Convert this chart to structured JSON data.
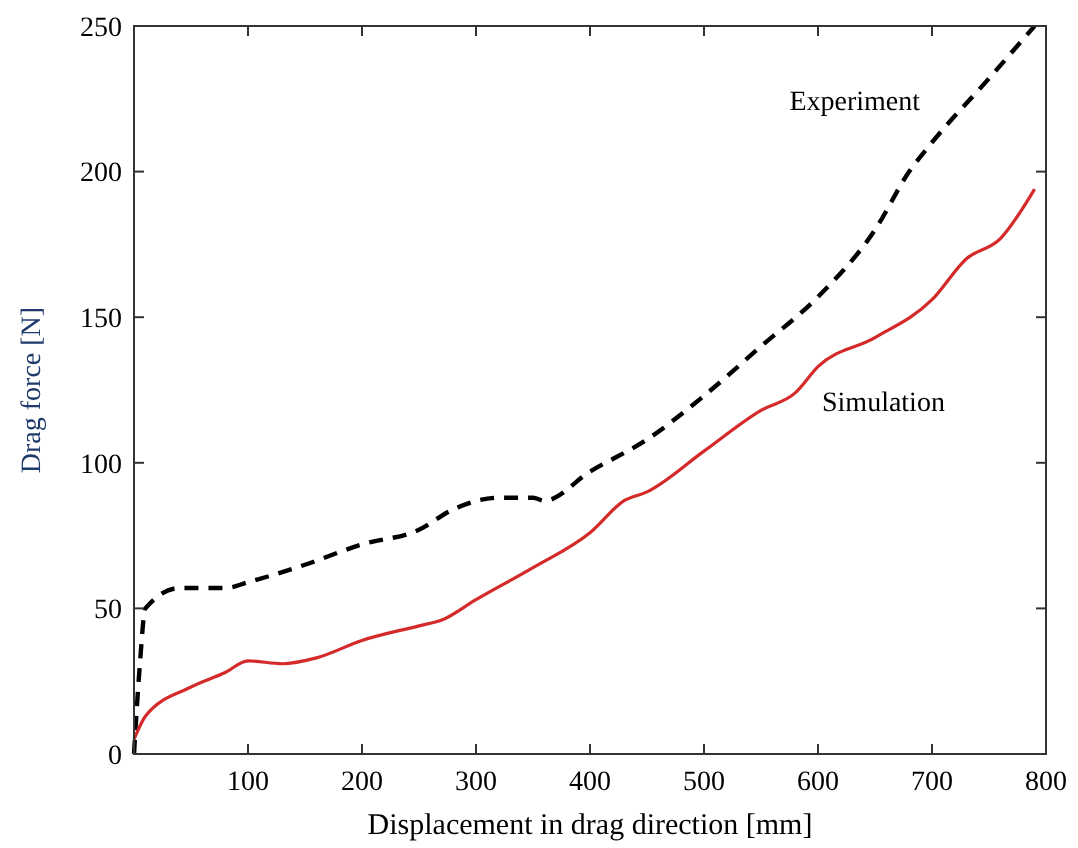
{
  "chart_data": {
    "type": "line",
    "xlabel": "Displacement in drag direction [mm]",
    "ylabel": "Drag force [N]",
    "xlim": [
      0,
      800
    ],
    "ylim": [
      0,
      250
    ],
    "xticks": [
      {
        "value": 0,
        "label": null
      },
      100,
      200,
      300,
      400,
      500,
      600,
      700,
      800
    ],
    "yticks": [
      0,
      50,
      100,
      150,
      200,
      250
    ],
    "grid": false,
    "marker": "none",
    "series": [
      {
        "name": "Experiment",
        "color": "#000000",
        "line_style": "dashed",
        "x": [
          0,
          5,
          10,
          40,
          80,
          100,
          150,
          200,
          250,
          280,
          320,
          350,
          360,
          400,
          450,
          500,
          550,
          600,
          650,
          680,
          700,
          750,
          790
        ],
        "values": [
          0,
          30,
          50,
          57,
          57,
          59,
          65,
          72,
          77,
          84,
          88,
          88,
          87,
          97,
          108,
          123,
          140,
          157,
          180,
          200,
          210,
          232,
          250
        ]
      },
      {
        "name": "Simulation",
        "color": "#d42a2a",
        "line_style": "solid",
        "x": [
          0,
          10,
          50,
          80,
          100,
          130,
          160,
          200,
          250,
          270,
          300,
          350,
          400,
          430,
          450,
          500,
          550,
          580,
          600,
          650,
          700,
          730,
          760,
          790
        ],
        "values": [
          5,
          13,
          23,
          28,
          32,
          31,
          33,
          39,
          44,
          46,
          53,
          64,
          76,
          87,
          90,
          104,
          118,
          124,
          133,
          143,
          156,
          170,
          177,
          194
        ]
      }
    ]
  }
}
